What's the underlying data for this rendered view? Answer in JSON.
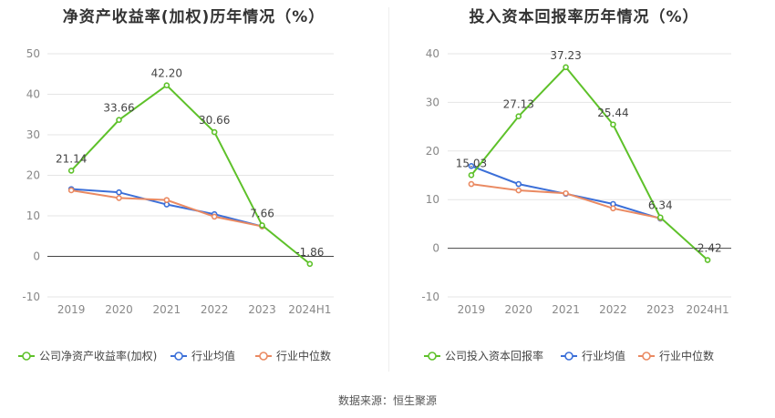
{
  "source_label": "数据来源：恒生聚源",
  "colors": {
    "company": "#5ec12a",
    "avg": "#3b6fd8",
    "median": "#ea8a62",
    "grid": "#e5e5e5",
    "axis_text": "#888888",
    "label_text": "#444444"
  },
  "chart_data": [
    {
      "type": "line",
      "title": "净资产收益率(加权)历年情况（%）",
      "categories": [
        "2019",
        "2020",
        "2021",
        "2022",
        "2023",
        "2024H1"
      ],
      "ylim": [
        -10,
        50
      ],
      "yticks": [
        -10,
        0,
        10,
        20,
        30,
        40,
        50
      ],
      "series": [
        {
          "name": "公司净资产收益率(加权)",
          "key": "company",
          "values": [
            21.14,
            33.66,
            42.2,
            30.66,
            7.66,
            -1.86
          ],
          "labels": [
            "21.14",
            "33.66",
            "42.20",
            "30.66",
            "7.66",
            "-1.86"
          ]
        },
        {
          "name": "行业均值",
          "key": "avg",
          "values": [
            16.6,
            15.8,
            12.8,
            10.4,
            7.4,
            null
          ]
        },
        {
          "name": "行业中位数",
          "key": "median",
          "values": [
            16.3,
            14.4,
            13.9,
            9.8,
            7.4,
            null
          ]
        }
      ],
      "legend": "bottom"
    },
    {
      "type": "line",
      "title": "投入资本回报率历年情况（%）",
      "categories": [
        "2019",
        "2020",
        "2021",
        "2022",
        "2023",
        "2024H1"
      ],
      "ylim": [
        -10,
        40
      ],
      "yticks": [
        -10,
        0,
        10,
        20,
        30,
        40
      ],
      "series": [
        {
          "name": "公司投入资本回报率",
          "key": "company",
          "values": [
            15.03,
            27.13,
            37.23,
            25.44,
            6.34,
            -2.42
          ],
          "labels": [
            "15.03",
            "27.13",
            "37.23",
            "25.44",
            "6.34",
            "-2.42"
          ]
        },
        {
          "name": "行业均值",
          "key": "avg",
          "values": [
            16.9,
            13.2,
            11.2,
            9.1,
            6.1,
            null
          ]
        },
        {
          "name": "行业中位数",
          "key": "median",
          "values": [
            13.2,
            11.9,
            11.3,
            8.2,
            6.2,
            null
          ]
        }
      ],
      "legend": "bottom"
    }
  ]
}
